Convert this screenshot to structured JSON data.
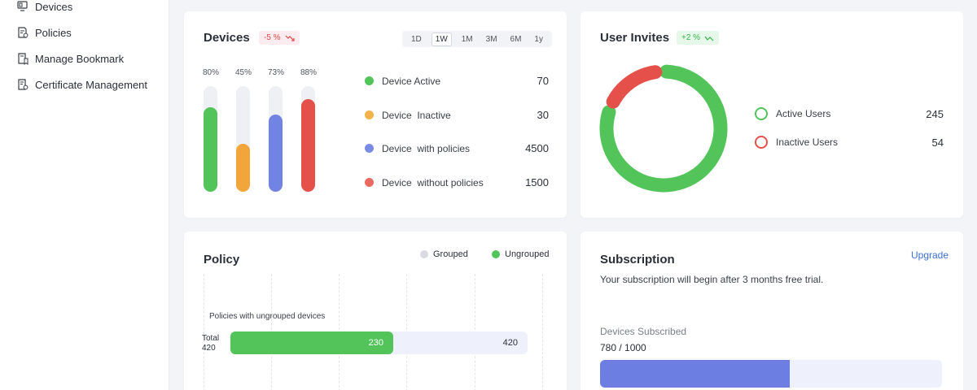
{
  "sidebar": {
    "items": [
      {
        "label": "Devices",
        "icon": "devices-icon"
      },
      {
        "label": "Policies",
        "icon": "policies-icon"
      },
      {
        "label": "Manage Bookmark",
        "icon": "bookmark-icon"
      },
      {
        "label": "Certificate Management",
        "icon": "certificate-icon"
      }
    ]
  },
  "devices": {
    "title": "Devices",
    "badge": "-5 %",
    "timeframes": [
      "1D",
      "1W",
      "1M",
      "3M",
      "6M",
      "1y"
    ],
    "active_timeframe": "1W",
    "bars": [
      {
        "label": "80%",
        "value": 0.8,
        "color": "#52c45a"
      },
      {
        "label": "45%",
        "value": 0.45,
        "color": "#f2a53a"
      },
      {
        "label": "73%",
        "value": 0.73,
        "color": "#7183e3"
      },
      {
        "label": "88%",
        "value": 0.88,
        "color": "#e5514a"
      }
    ],
    "legend": [
      {
        "label": "Device Active",
        "value": "70",
        "color": "#52c45a"
      },
      {
        "label": "Device  Inactive",
        "value": "30",
        "color": "#f2b34a"
      },
      {
        "label": "Device  with policies",
        "value": "4500",
        "color": "#7a8be6"
      },
      {
        "label": "Device  without policies",
        "value": "1500",
        "color": "#ea6a62"
      }
    ]
  },
  "user_invites": {
    "title": "User Invites",
    "badge": "+2 %",
    "items": [
      {
        "label": "Active Users",
        "value": "245",
        "count": 245,
        "color": "#52c45a"
      },
      {
        "label": "Inactive Users",
        "value": "54",
        "count": 54,
        "color": "#e5514a"
      }
    ]
  },
  "policy": {
    "title": "Policy",
    "legend": [
      {
        "label": "Grouped",
        "color": "#d9dbe0"
      },
      {
        "label": "Ungrouped",
        "color": "#52c45a"
      }
    ],
    "bar_caption": "Policies with ungrouped devices",
    "total_label": "Total",
    "total_value": "420",
    "ungrouped_value": "230",
    "end_value": "420",
    "ungrouped_count": 230,
    "total_count": 420
  },
  "subscription": {
    "title": "Subscription",
    "upgrade_label": "Upgrade",
    "description": "Your subscription will begin after 3 months free trial.",
    "devices_label": "Devices Subscribed",
    "devices_value": "780 / 1000",
    "used": 780,
    "total": 1000
  },
  "colors": {
    "accent_blue": "#3a6fd8",
    "green": "#52c45a",
    "red": "#e5514a",
    "progress_blue": "#6c7ee1",
    "progress_track": "#eef1fb"
  }
}
